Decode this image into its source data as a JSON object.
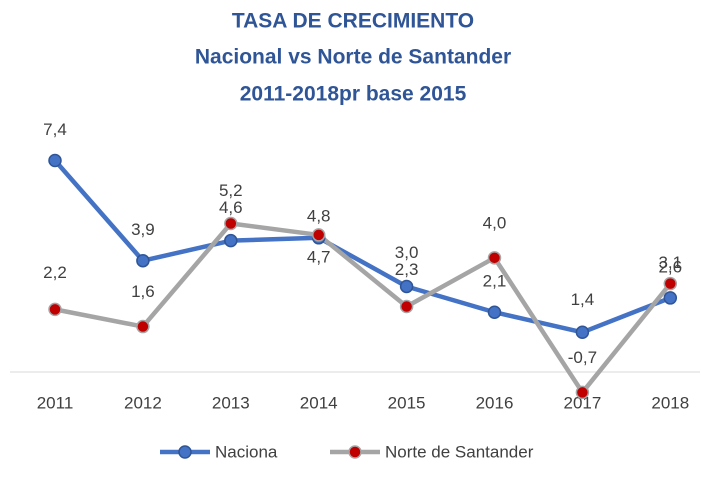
{
  "chart_data": {
    "type": "line",
    "title": "TASA DE CRECIMIENTO",
    "subtitle": [
      "Nacional vs Norte de Santander",
      "2011-2018pr base 2015"
    ],
    "categories": [
      "2011",
      "2012",
      "2013",
      "2014",
      "2015",
      "2016",
      "2017",
      "2018"
    ],
    "series": [
      {
        "name": "Naciona",
        "color": "#4472c4",
        "values": [
          7.4,
          3.9,
          4.6,
          4.7,
          3.0,
          2.1,
          1.4,
          2.6
        ],
        "value_labels": [
          "7,4",
          "3,9",
          "4,6",
          "4,7",
          "3,0",
          "2,1",
          "1,4",
          "2,6"
        ]
      },
      {
        "name": "Norte de Santander",
        "color": "#a5a5a5",
        "values": [
          2.2,
          1.6,
          5.2,
          4.8,
          2.3,
          4.0,
          -0.7,
          3.1
        ],
        "value_labels": [
          "2,2",
          "1,6",
          "5,2",
          "4,8",
          "2,3",
          "4,0",
          "-0,7",
          "3,1"
        ]
      }
    ],
    "ylim": [
      -1,
      8.5
    ],
    "legend": "bottom"
  }
}
